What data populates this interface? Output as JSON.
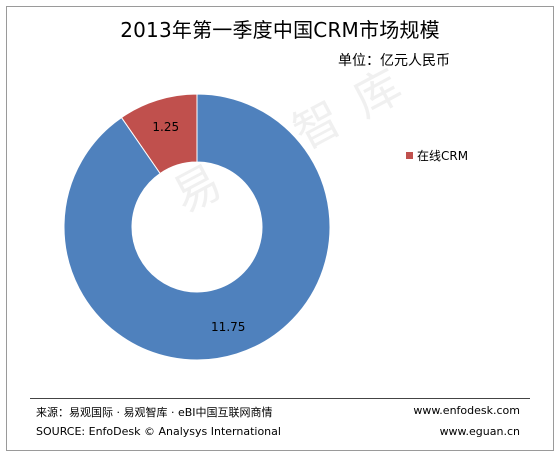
{
  "chart_data": {
    "type": "pie",
    "title": "2013年第一季度中国CRM市场规模",
    "subtitle": "单位：亿元人民币",
    "categories": [
      "在线CRM",
      ""
    ],
    "values": [
      1.25,
      11.75
    ],
    "data_labels": [
      "1.25",
      "11.75"
    ],
    "colors": [
      "#C0504D",
      "#4F81BD"
    ],
    "legend": {
      "entries": [
        "在线CRM"
      ],
      "placement": "right"
    },
    "donut": true
  },
  "watermark": "易观智库",
  "footer": {
    "source_cn": "来源：易观国际 · 易观智库 · eBI中国互联网商情",
    "source_en": "SOURCE: EnfoDesk © Analysys International",
    "site1": "www.enfodesk.com",
    "site2": "www.eguan.cn"
  }
}
